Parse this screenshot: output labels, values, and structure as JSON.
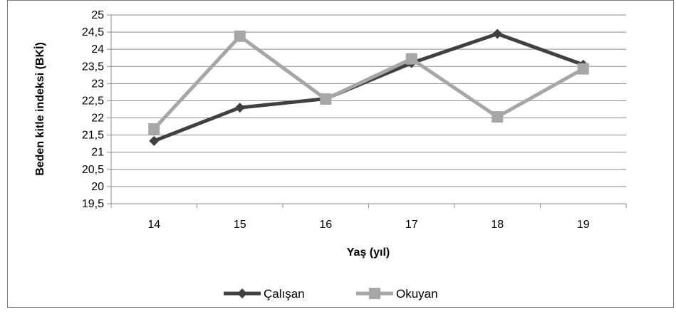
{
  "chart_data": {
    "type": "line",
    "x": [
      "14",
      "15",
      "16",
      "17",
      "18",
      "19"
    ],
    "xlabel": "Yaş (yıl)",
    "ylabel": "Beden kitle indeksi (BKİ)",
    "ylim": [
      19.5,
      25
    ],
    "ystep": 0.5,
    "yticks": [
      "19,5",
      "20",
      "20,5",
      "21",
      "21,5",
      "22",
      "22,5",
      "23",
      "23,5",
      "24",
      "24,5",
      "25"
    ],
    "grid": true,
    "legend_position": "bottom",
    "series": [
      {
        "name": "Çalışan",
        "values": [
          21.33,
          22.3,
          22.56,
          23.6,
          24.45,
          23.55
        ],
        "color": "#404040",
        "marker": "diamond"
      },
      {
        "name": "Okuyan",
        "values": [
          21.68,
          24.38,
          22.55,
          23.72,
          22.03,
          23.43
        ],
        "color": "#a6a6a6",
        "marker": "square"
      }
    ]
  }
}
